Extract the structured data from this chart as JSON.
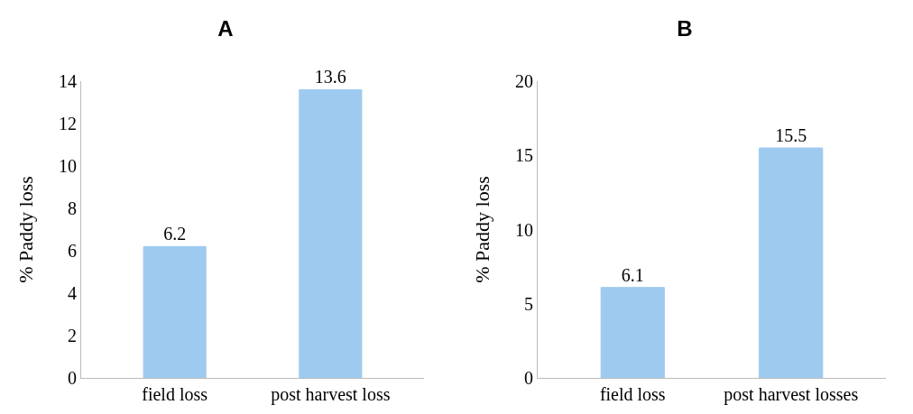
{
  "chart_data": [
    {
      "type": "bar",
      "title": "A",
      "ylabel": "% Paddy loss",
      "categories": [
        "field loss",
        "post harvest loss"
      ],
      "values": [
        6.2,
        13.6
      ],
      "color": "#9ecaf0",
      "ylim": [
        0,
        14
      ],
      "yticks": [
        0,
        2,
        4,
        6,
        8,
        10,
        12,
        14
      ],
      "grid": false,
      "data_labels": true
    },
    {
      "type": "bar",
      "title": "B",
      "ylabel": "% Paddy loss",
      "categories": [
        "field loss",
        "post harvest losses"
      ],
      "values": [
        6.1,
        15.5
      ],
      "color": "#9ecaf0",
      "ylim": [
        0,
        20
      ],
      "yticks": [
        0,
        5,
        10,
        15,
        20
      ],
      "grid": false,
      "data_labels": true
    }
  ]
}
